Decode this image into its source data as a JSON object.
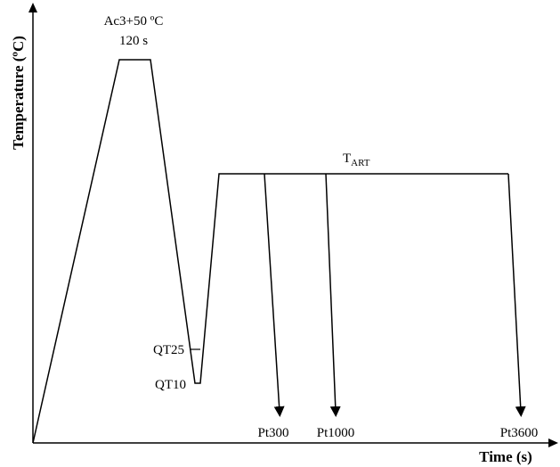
{
  "axes": {
    "y_title": "Temperature (ºC)",
    "x_title": "Time (s)"
  },
  "annotations": {
    "austenitize_temp": "Ac3+50 ºC",
    "austenitize_time": "120 s",
    "art_temp_main": "T",
    "art_temp_sub": "ART",
    "qt25": "QT25",
    "qt10": "QT10",
    "pt300": "Pt300",
    "pt1000": "Pt1000",
    "pt3600": "Pt3600"
  }
}
